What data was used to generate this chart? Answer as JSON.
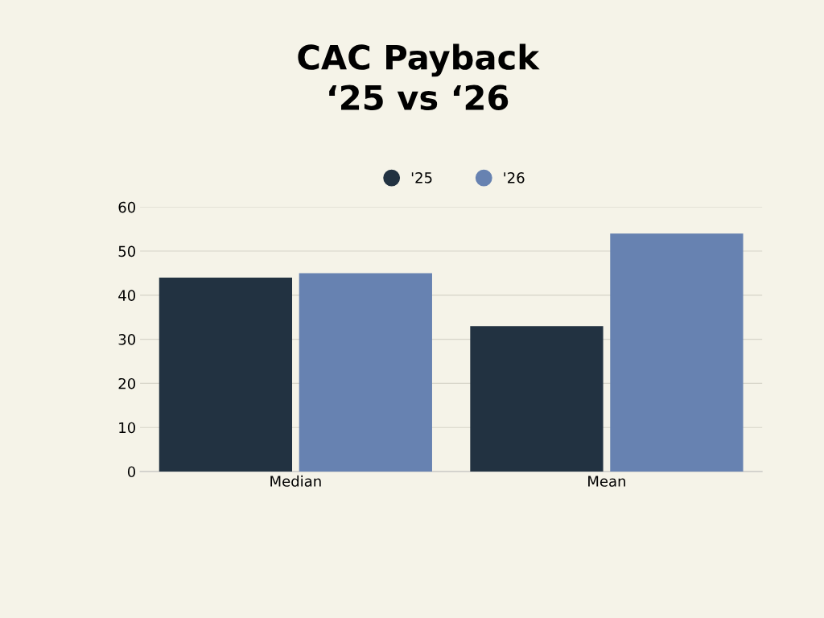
{
  "chart_data": {
    "type": "bar",
    "title": "CAC Payback\n‘25 vs ‘26",
    "categories": [
      "Median",
      "Mean"
    ],
    "series": [
      {
        "name": "'25",
        "color": "#223241",
        "values": [
          44,
          33
        ]
      },
      {
        "name": "'26",
        "color": "#6782b1",
        "values": [
          45,
          54
        ]
      }
    ],
    "ylim": [
      0,
      60
    ],
    "yticks": [
      0,
      10,
      20,
      30,
      40,
      50,
      60
    ],
    "grid": "y",
    "legend": "top"
  }
}
